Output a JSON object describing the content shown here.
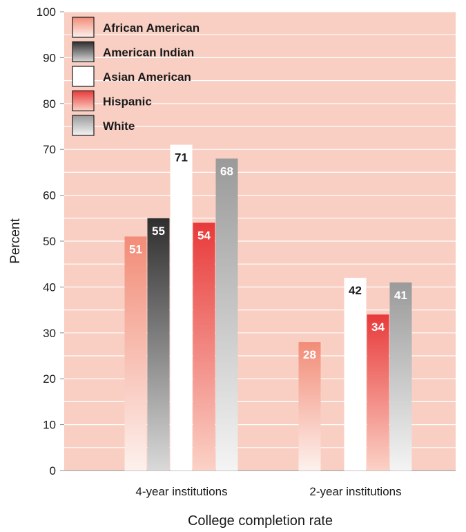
{
  "chart_data": {
    "type": "bar",
    "title": "",
    "xlabel": "College completion rate",
    "ylabel": "Percent",
    "ylim": [
      0,
      100
    ],
    "yticks": [
      0,
      10,
      20,
      30,
      40,
      50,
      60,
      70,
      80,
      90,
      100
    ],
    "grid": true,
    "legend_position": "top-left",
    "categories": [
      "4-year institutions",
      "2-year institutions"
    ],
    "series": [
      {
        "name": "African American",
        "values": [
          51,
          28
        ],
        "label_color": "#ffffff"
      },
      {
        "name": "American Indian",
        "values": [
          55,
          null
        ],
        "label_color": "#ffffff"
      },
      {
        "name": "Asian American",
        "values": [
          71,
          42
        ],
        "label_color": "#1a1a1a"
      },
      {
        "name": "Hispanic",
        "values": [
          54,
          34
        ],
        "label_color": "#ffffff"
      },
      {
        "name": "White",
        "values": [
          68,
          41
        ],
        "label_color": "#ffffff"
      }
    ],
    "colors": {
      "plot_background": "#f9cfc3",
      "gridline": "#ffffff",
      "axis": "#888888",
      "text": "#1a1a1a",
      "series_gradients": [
        [
          "#f28c77",
          "#fdf1ed"
        ],
        [
          "#2e2e2e",
          "#d9d9d9"
        ],
        [
          "#ffffff",
          "#ffffff"
        ],
        [
          "#e83a3a",
          "#fbd2c6"
        ],
        [
          "#9a9a9a",
          "#f4f4f4"
        ]
      ]
    }
  }
}
